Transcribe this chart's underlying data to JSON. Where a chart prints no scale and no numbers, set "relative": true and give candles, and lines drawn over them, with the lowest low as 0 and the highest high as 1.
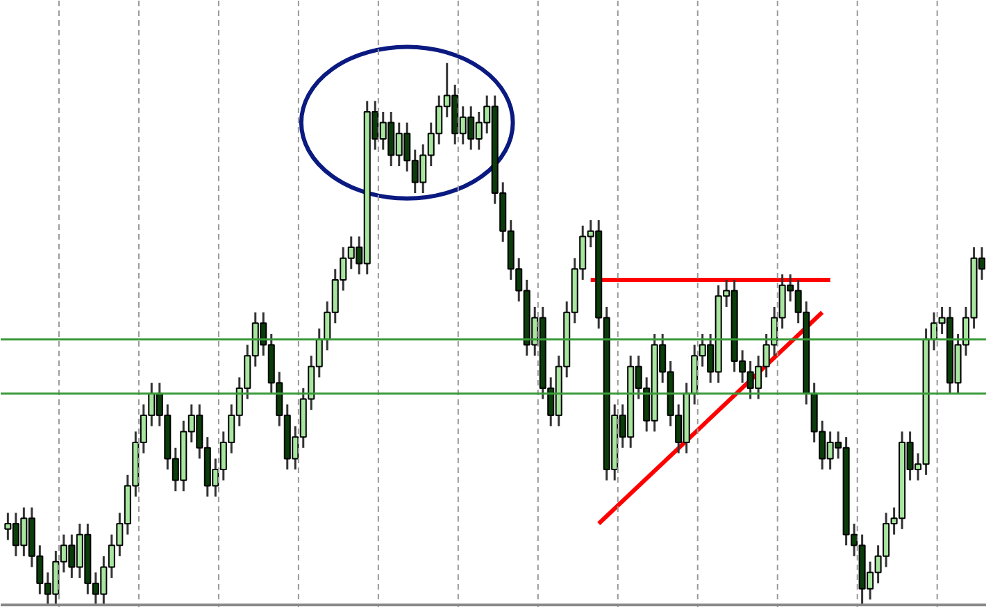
{
  "chart_data": {
    "type": "candlestick",
    "relative": true,
    "categories": [
      null,
      null,
      null,
      null,
      null,
      null,
      null,
      null,
      null,
      null,
      null,
      null,
      null,
      null,
      null,
      null,
      null,
      null,
      null,
      null,
      null,
      null,
      null,
      null,
      null,
      null,
      null,
      null,
      null,
      null,
      null,
      null,
      null,
      null,
      null,
      null,
      null,
      null,
      null,
      null,
      null,
      null,
      null,
      null,
      null,
      null,
      null,
      null,
      null,
      null,
      null,
      null,
      null,
      null,
      null,
      null,
      null,
      null,
      null,
      null,
      null,
      null,
      null,
      null,
      null,
      null,
      null,
      null,
      null,
      null,
      null,
      null,
      null,
      null,
      null,
      null,
      null,
      null,
      null,
      null,
      null,
      null,
      null,
      null,
      null,
      null,
      null,
      null,
      null,
      null,
      null,
      null,
      null,
      null,
      null,
      null,
      null,
      null,
      null,
      null,
      null,
      null,
      null,
      null,
      null,
      null,
      null,
      null,
      null,
      null,
      null,
      null,
      null,
      null,
      null,
      null,
      null,
      null,
      null,
      null,
      null,
      null,
      null
    ],
    "ohlc": [
      [
        0.14,
        0.17,
        0.12,
        0.15
      ],
      [
        0.15,
        0.17,
        0.09,
        0.11
      ],
      [
        0.11,
        0.18,
        0.09,
        0.16
      ],
      [
        0.16,
        0.18,
        0.07,
        0.09
      ],
      [
        0.09,
        0.11,
        0.02,
        0.04
      ],
      [
        0.04,
        0.06,
        0,
        0.02
      ],
      [
        0.02,
        0.1,
        0,
        0.08
      ],
      [
        0.08,
        0.13,
        0.06,
        0.11
      ],
      [
        0.11,
        0.13,
        0.05,
        0.07
      ],
      [
        0.07,
        0.15,
        0.05,
        0.13
      ],
      [
        0.13,
        0.15,
        0.02,
        0.04
      ],
      [
        0.04,
        0.06,
        0,
        0.02
      ],
      [
        0.02,
        0.09,
        0,
        0.07
      ],
      [
        0.07,
        0.13,
        0.05,
        0.11
      ],
      [
        0.11,
        0.17,
        0.09,
        0.15
      ],
      [
        0.15,
        0.24,
        0.13,
        0.22
      ],
      [
        0.22,
        0.32,
        0.2,
        0.3
      ],
      [
        0.3,
        0.37,
        0.28,
        0.35
      ],
      [
        0.35,
        0.41,
        0.33,
        0.39
      ],
      [
        0.39,
        0.41,
        0.33,
        0.35
      ],
      [
        0.35,
        0.37,
        0.25,
        0.27
      ],
      [
        0.27,
        0.29,
        0.21,
        0.23
      ],
      [
        0.23,
        0.34,
        0.21,
        0.32
      ],
      [
        0.32,
        0.37,
        0.3,
        0.35
      ],
      [
        0.35,
        0.37,
        0.27,
        0.29
      ],
      [
        0.29,
        0.31,
        0.2,
        0.22
      ],
      [
        0.22,
        0.27,
        0.2,
        0.25
      ],
      [
        0.25,
        0.32,
        0.23,
        0.3
      ],
      [
        0.3,
        0.37,
        0.28,
        0.35
      ],
      [
        0.35,
        0.42,
        0.33,
        0.4
      ],
      [
        0.4,
        0.48,
        0.38,
        0.46
      ],
      [
        0.46,
        0.54,
        0.44,
        0.52
      ],
      [
        0.52,
        0.54,
        0.46,
        0.48
      ],
      [
        0.48,
        0.5,
        0.39,
        0.41
      ],
      [
        0.41,
        0.43,
        0.33,
        0.35
      ],
      [
        0.35,
        0.37,
        0.25,
        0.27
      ],
      [
        0.27,
        0.33,
        0.25,
        0.31
      ],
      [
        0.31,
        0.4,
        0.29,
        0.38
      ],
      [
        0.38,
        0.46,
        0.36,
        0.44
      ],
      [
        0.44,
        0.51,
        0.42,
        0.49
      ],
      [
        0.49,
        0.56,
        0.47,
        0.54
      ],
      [
        0.54,
        0.62,
        0.52,
        0.6
      ],
      [
        0.6,
        0.66,
        0.58,
        0.64
      ],
      [
        0.64,
        0.68,
        0.62,
        0.66
      ],
      [
        0.66,
        0.68,
        0.61,
        0.63
      ],
      [
        0.63,
        0.93,
        0.61,
        0.91
      ],
      [
        0.91,
        0.93,
        0.84,
        0.86
      ],
      [
        0.86,
        0.91,
        0.84,
        0.89
      ],
      [
        0.89,
        0.91,
        0.81,
        0.83
      ],
      [
        0.83,
        0.89,
        0.81,
        0.87
      ],
      [
        0.87,
        0.89,
        0.8,
        0.82
      ],
      [
        0.82,
        0.84,
        0.76,
        0.78
      ],
      [
        0.78,
        0.85,
        0.76,
        0.83
      ],
      [
        0.83,
        0.89,
        0.81,
        0.87
      ],
      [
        0.87,
        0.94,
        0.85,
        0.92
      ],
      [
        0.92,
        1,
        0.9,
        0.94
      ],
      [
        0.94,
        0.96,
        0.85,
        0.87
      ],
      [
        0.87,
        0.92,
        0.85,
        0.9
      ],
      [
        0.9,
        0.92,
        0.84,
        0.86
      ],
      [
        0.86,
        0.91,
        0.84,
        0.89
      ],
      [
        0.89,
        0.94,
        0.87,
        0.92
      ],
      [
        0.92,
        0.94,
        0.74,
        0.76
      ],
      [
        0.76,
        0.78,
        0.67,
        0.69
      ],
      [
        0.69,
        0.71,
        0.6,
        0.62
      ],
      [
        0.62,
        0.64,
        0.56,
        0.58
      ],
      [
        0.58,
        0.6,
        0.46,
        0.48
      ],
      [
        0.48,
        0.55,
        0.46,
        0.53
      ],
      [
        0.53,
        0.55,
        0.38,
        0.4
      ],
      [
        0.4,
        0.42,
        0.33,
        0.35
      ],
      [
        0.35,
        0.46,
        0.33,
        0.44
      ],
      [
        0.44,
        0.56,
        0.42,
        0.54
      ],
      [
        0.54,
        0.64,
        0.52,
        0.62
      ],
      [
        0.62,
        0.7,
        0.6,
        0.68
      ],
      [
        0.68,
        0.71,
        0.66,
        0.69
      ],
      [
        0.69,
        0.71,
        0.51,
        0.53
      ],
      [
        0.53,
        0.55,
        0.23,
        0.25
      ],
      [
        0.25,
        0.37,
        0.23,
        0.35
      ],
      [
        0.35,
        0.37,
        0.29,
        0.31
      ],
      [
        0.31,
        0.46,
        0.29,
        0.44
      ],
      [
        0.44,
        0.46,
        0.38,
        0.4
      ],
      [
        0.4,
        0.42,
        0.32,
        0.34
      ],
      [
        0.34,
        0.5,
        0.32,
        0.48
      ],
      [
        0.48,
        0.5,
        0.41,
        0.43
      ],
      [
        0.43,
        0.45,
        0.33,
        0.35
      ],
      [
        0.35,
        0.37,
        0.28,
        0.3
      ],
      [
        0.3,
        0.41,
        0.28,
        0.39
      ],
      [
        0.39,
        0.48,
        0.37,
        0.46
      ],
      [
        0.46,
        0.5,
        0.44,
        0.48
      ],
      [
        0.48,
        0.5,
        0.41,
        0.43
      ],
      [
        0.43,
        0.59,
        0.41,
        0.57
      ],
      [
        0.57,
        0.6,
        0.55,
        0.58
      ],
      [
        0.58,
        0.6,
        0.43,
        0.45
      ],
      [
        0.45,
        0.47,
        0.41,
        0.43
      ],
      [
        0.43,
        0.45,
        0.38,
        0.4
      ],
      [
        0.4,
        0.46,
        0.38,
        0.44
      ],
      [
        0.44,
        0.5,
        0.42,
        0.48
      ],
      [
        0.48,
        0.55,
        0.46,
        0.53
      ],
      [
        0.53,
        0.61,
        0.51,
        0.59
      ],
      [
        0.59,
        0.61,
        0.56,
        0.58
      ],
      [
        0.58,
        0.6,
        0.52,
        0.54
      ],
      [
        0.54,
        0.56,
        0.37,
        0.39
      ],
      [
        0.39,
        0.41,
        0.3,
        0.32
      ],
      [
        0.32,
        0.34,
        0.25,
        0.27
      ],
      [
        0.27,
        0.32,
        0.25,
        0.3
      ],
      [
        0.3,
        0.32,
        0.27,
        0.29
      ],
      [
        0.29,
        0.31,
        0.11,
        0.13
      ],
      [
        0.13,
        0.15,
        0.09,
        0.11
      ],
      [
        0.11,
        0.13,
        0,
        0.03
      ],
      [
        0.03,
        0.08,
        0.01,
        0.06
      ],
      [
        0.06,
        0.11,
        0.04,
        0.09
      ],
      [
        0.09,
        0.17,
        0.07,
        0.15
      ],
      [
        0.15,
        0.18,
        0.13,
        0.16
      ],
      [
        0.16,
        0.32,
        0.14,
        0.3
      ],
      [
        0.3,
        0.32,
        0.23,
        0.25
      ],
      [
        0.25,
        0.28,
        0.23,
        0.26
      ],
      [
        0.26,
        0.51,
        0.24,
        0.49
      ],
      [
        0.49,
        0.54,
        0.47,
        0.52
      ],
      [
        0.52,
        0.55,
        0.5,
        0.53
      ],
      [
        0.53,
        0.55,
        0.39,
        0.41
      ],
      [
        0.41,
        0.5,
        0.39,
        0.48
      ],
      [
        0.48,
        0.55,
        0.46,
        0.53
      ],
      [
        0.53,
        0.66,
        0.51,
        0.64
      ],
      [
        0.64,
        0.66,
        0.6,
        0.62
      ]
    ],
    "colors": [
      "#a8e6a0",
      "#0b3d0b",
      "#a8e6a0",
      "#0b3d0b",
      "#0b3d0b",
      "#0b3d0b",
      "#a8e6a0",
      "#a8e6a0",
      "#0b3d0b",
      "#a8e6a0",
      "#0b3d0b",
      "#0b3d0b",
      "#a8e6a0",
      "#a8e6a0",
      "#a8e6a0",
      "#a8e6a0",
      "#a8e6a0",
      "#a8e6a0",
      "#a8e6a0",
      "#0b3d0b",
      "#0b3d0b",
      "#0b3d0b",
      "#a8e6a0",
      "#a8e6a0",
      "#0b3d0b",
      "#0b3d0b",
      "#a8e6a0",
      "#a8e6a0",
      "#a8e6a0",
      "#a8e6a0",
      "#a8e6a0",
      "#a8e6a0",
      "#0b3d0b",
      "#0b3d0b",
      "#0b3d0b",
      "#0b3d0b",
      "#a8e6a0",
      "#a8e6a0",
      "#a8e6a0",
      "#a8e6a0",
      "#a8e6a0",
      "#a8e6a0",
      "#a8e6a0",
      "#a8e6a0",
      "#0b3d0b",
      "#a8e6a0",
      "#0b3d0b",
      "#a8e6a0",
      "#0b3d0b",
      "#a8e6a0",
      "#0b3d0b",
      "#0b3d0b",
      "#a8e6a0",
      "#a8e6a0",
      "#a8e6a0",
      "#a8e6a0",
      "#0b3d0b",
      "#a8e6a0",
      "#0b3d0b",
      "#a8e6a0",
      "#a8e6a0",
      "#0b3d0b",
      "#0b3d0b",
      "#0b3d0b",
      "#0b3d0b",
      "#0b3d0b",
      "#a8e6a0",
      "#0b3d0b",
      "#0b3d0b",
      "#a8e6a0",
      "#a8e6a0",
      "#a8e6a0",
      "#a8e6a0",
      "#a8e6a0",
      "#0b3d0b",
      "#0b3d0b",
      "#a8e6a0",
      "#0b3d0b",
      "#a8e6a0",
      "#0b3d0b",
      "#0b3d0b",
      "#a8e6a0",
      "#0b3d0b",
      "#0b3d0b",
      "#0b3d0b",
      "#a8e6a0",
      "#a8e6a0",
      "#a8e6a0",
      "#0b3d0b",
      "#a8e6a0",
      "#a8e6a0",
      "#0b3d0b",
      "#0b3d0b",
      "#0b3d0b",
      "#a8e6a0",
      "#a8e6a0",
      "#a8e6a0",
      "#a8e6a0",
      "#0b3d0b",
      "#0b3d0b",
      "#0b3d0b",
      "#0b3d0b",
      "#0b3d0b",
      "#a8e6a0",
      "#0b3d0b",
      "#0b3d0b",
      "#0b3d0b",
      "#0b3d0b",
      "#a8e6a0",
      "#a8e6a0",
      "#a8e6a0",
      "#a8e6a0",
      "#a8e6a0",
      "#0b3d0b",
      "#a8e6a0",
      "#a8e6a0",
      "#a8e6a0",
      "#a8e6a0",
      "#0b3d0b",
      "#a8e6a0",
      "#a8e6a0",
      "#a8e6a0",
      "#0b3d0b"
    ],
    "series": [
      {
        "type": "line",
        "color": "#ff0000",
        "values": [
          null,
          null,
          null,
          null,
          null,
          null,
          null,
          null,
          null,
          null,
          null,
          null,
          null,
          null,
          null,
          null,
          null,
          null,
          null,
          null,
          null,
          null,
          null,
          null,
          null,
          null,
          null,
          null,
          null,
          null,
          null,
          null,
          null,
          null,
          null,
          null,
          null,
          null,
          null,
          null,
          null,
          null,
          null,
          null,
          null,
          null,
          null,
          null,
          null,
          null,
          null,
          null,
          null,
          null,
          null,
          null,
          null,
          null,
          null,
          null,
          null,
          null,
          null,
          null,
          null,
          null,
          null,
          null,
          null,
          null,
          null,
          null,
          null,
          0.6,
          null,
          null,
          null,
          null,
          null,
          null,
          null,
          null,
          null,
          null,
          null,
          null,
          null,
          null,
          null,
          null,
          null,
          null,
          null,
          null,
          null,
          null,
          null,
          null,
          null,
          null,
          null,
          null,
          null,
          0.6,
          null,
          null,
          null,
          null,
          null,
          null,
          null,
          null,
          null,
          null,
          null,
          null,
          null,
          null,
          null,
          null,
          null,
          null,
          null
        ]
      },
      {
        "type": "line",
        "color": "#ff0000",
        "values": [
          null,
          null,
          null,
          null,
          null,
          null,
          null,
          null,
          null,
          null,
          null,
          null,
          null,
          null,
          null,
          null,
          null,
          null,
          null,
          null,
          null,
          null,
          null,
          null,
          null,
          null,
          null,
          null,
          null,
          null,
          null,
          null,
          null,
          null,
          null,
          null,
          null,
          null,
          null,
          null,
          null,
          null,
          null,
          null,
          null,
          null,
          null,
          null,
          null,
          null,
          null,
          null,
          null,
          null,
          null,
          null,
          null,
          null,
          null,
          null,
          null,
          null,
          null,
          null,
          null,
          null,
          null,
          null,
          null,
          null,
          null,
          null,
          null,
          null,
          0.15,
          null,
          null,
          null,
          null,
          null,
          null,
          null,
          null,
          null,
          null,
          null,
          null,
          null,
          null,
          null,
          null,
          null,
          null,
          null,
          null,
          null,
          null,
          null,
          null,
          null,
          null,
          null,
          0.54,
          null,
          null,
          null,
          null,
          null,
          null,
          null,
          null,
          null,
          null,
          null,
          null,
          null,
          null,
          null,
          null,
          null,
          null,
          null,
          null
        ]
      }
    ],
    "ref_lines": [
      {
        "axis": "y",
        "value": 0.49,
        "color": "#3a9a3a"
      },
      {
        "axis": "y",
        "value": 0.39,
        "color": "#3a9a3a"
      }
    ]
  }
}
